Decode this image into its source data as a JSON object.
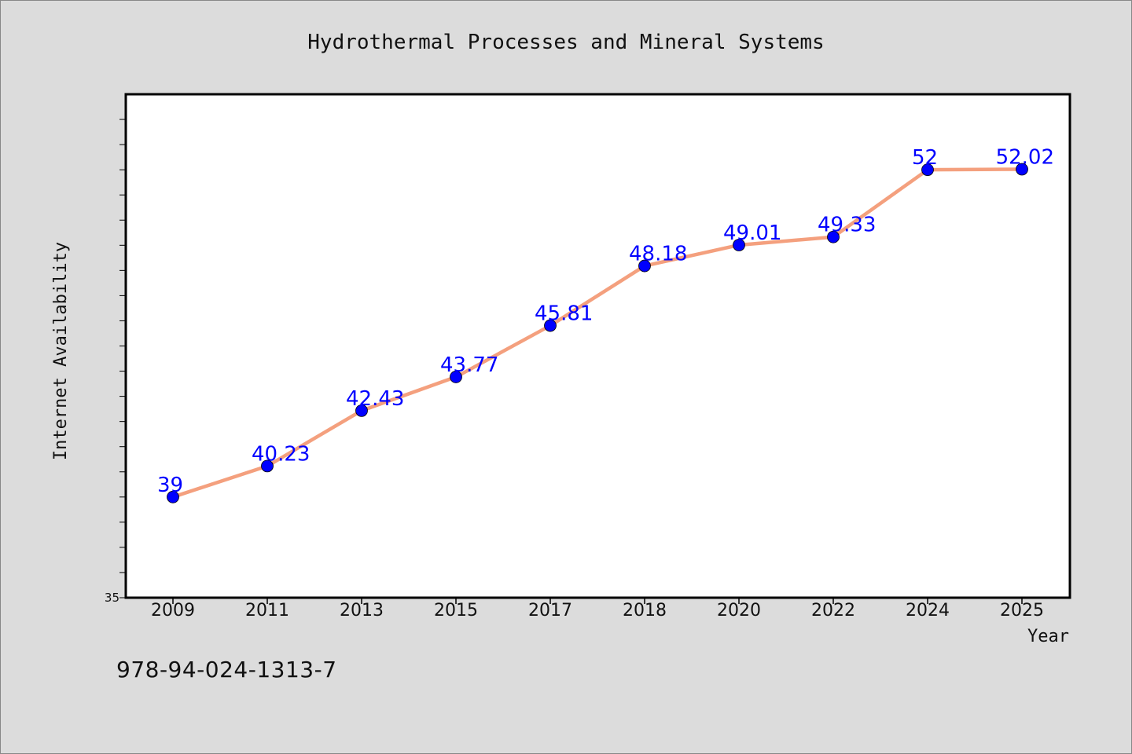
{
  "footer_code": "978-94-024-1313-7",
  "colors": {
    "background": "#dcdcdc",
    "plot_background": "#ffffff",
    "line": "#f4a07e",
    "marker": "#0000ff",
    "data_label": "#0000ff"
  },
  "chart_data": {
    "type": "line",
    "title": "Hydrothermal Processes and Mineral Systems",
    "xlabel": "Year",
    "ylabel": "Internet Availability",
    "categories": [
      "2009",
      "2011",
      "2013",
      "2015",
      "2017",
      "2018",
      "2020",
      "2022",
      "2024",
      "2025"
    ],
    "series": [
      {
        "values": [
          39,
          40.23,
          42.43,
          43.77,
          45.81,
          48.18,
          49.01,
          49.33,
          52,
          52.02
        ],
        "labels": [
          "39",
          "40.23",
          "42.43",
          "43.77",
          "45.81",
          "48.18",
          "49.01",
          "49.33",
          "52",
          "52.02"
        ]
      }
    ],
    "ylim": [
      35,
      55
    ],
    "yticks_labeled": [
      "35"
    ],
    "grid": false,
    "legend": "none"
  }
}
